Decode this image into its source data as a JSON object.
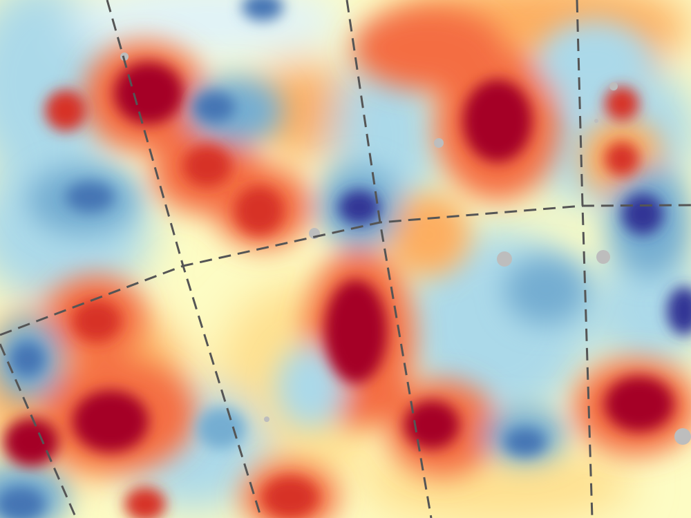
{
  "map": {
    "colormap": [
      "#313695",
      "#4575b4",
      "#74add1",
      "#abd9e9",
      "#e0f3f8",
      "#ffffbf",
      "#fee090",
      "#fdae61",
      "#f46d43",
      "#d73027",
      "#a50026"
    ],
    "background_color": "#fdfcc4",
    "masked_color": "#bdbdbd",
    "graticule_color": "#555555",
    "graticule_style": "dashed"
  }
}
